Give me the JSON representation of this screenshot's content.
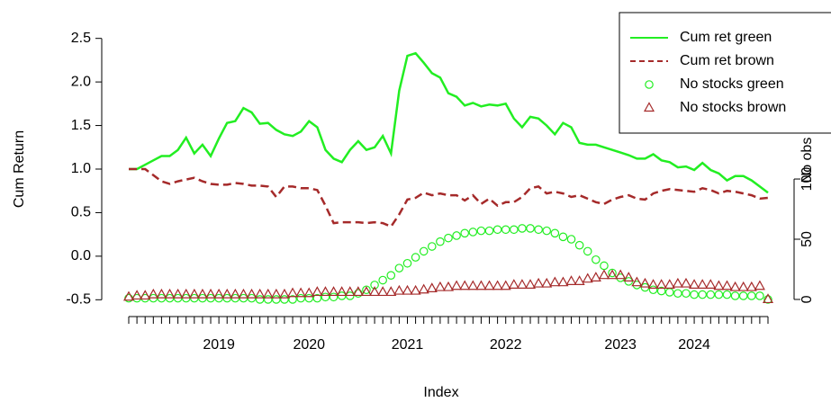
{
  "chart_data": {
    "type": "line",
    "x_label": "Index",
    "y_label": "Cum Return",
    "y2_label": "No obs",
    "categories": [
      null,
      null,
      null,
      null,
      null,
      null,
      null,
      null,
      null,
      null,
      null,
      "2019",
      null,
      null,
      null,
      null,
      null,
      null,
      null,
      null,
      null,
      null,
      "2020",
      null,
      null,
      null,
      null,
      null,
      null,
      null,
      null,
      null,
      null,
      null,
      "2021",
      null,
      null,
      null,
      null,
      null,
      null,
      null,
      null,
      null,
      null,
      null,
      "2022",
      null,
      null,
      null,
      null,
      null,
      null,
      null,
      null,
      null,
      null,
      null,
      null,
      null,
      "2023",
      null,
      null,
      null,
      null,
      null,
      null,
      null,
      null,
      "2024",
      null,
      null,
      null,
      null,
      null,
      null,
      null,
      null,
      null
    ],
    "ylim": [
      -0.6,
      2.6
    ],
    "yticks": [
      -0.5,
      {
        "value": 0,
        "label": "0.0"
      },
      0.5,
      {
        "value": 1,
        "label": "1.0"
      },
      1.5,
      {
        "value": 2,
        "label": "2.0"
      },
      2.5
    ],
    "y2lim": [
      -7.5,
      224
    ],
    "y2ticks": [
      0,
      50,
      100
    ],
    "legend": "top-right",
    "series": [
      {
        "name": "Cum ret green",
        "color": "#22ee22",
        "style": "solid",
        "values": [
          1.0,
          1.0,
          1.05,
          1.1,
          1.15,
          1.15,
          1.22,
          1.36,
          1.18,
          1.28,
          1.15,
          1.35,
          1.53,
          1.55,
          1.7,
          1.65,
          1.52,
          1.53,
          1.45,
          1.4,
          1.38,
          1.43,
          1.55,
          1.48,
          1.22,
          1.12,
          1.08,
          1.22,
          1.32,
          1.22,
          1.25,
          1.38,
          1.18,
          1.9,
          2.3,
          2.33,
          2.22,
          2.1,
          2.05,
          1.87,
          1.83,
          1.73,
          1.76,
          1.72,
          1.74,
          1.73,
          1.75,
          1.58,
          1.48,
          1.6,
          1.58,
          1.5,
          1.4,
          1.53,
          1.48,
          1.3,
          1.28,
          1.28,
          1.25,
          1.22,
          1.19,
          1.16,
          1.12,
          1.12,
          1.17,
          1.1,
          1.08,
          1.02,
          1.03,
          0.99,
          1.07,
          0.99,
          0.95,
          0.87,
          0.92,
          0.92,
          0.87,
          0.8,
          0.73
        ]
      },
      {
        "name": "Cum ret brown",
        "color": "#a52a2a",
        "style": "dashed",
        "values": [
          1.0,
          1.0,
          1.0,
          0.93,
          0.86,
          0.83,
          0.86,
          0.88,
          0.9,
          0.86,
          0.83,
          0.82,
          0.82,
          0.84,
          0.83,
          0.81,
          0.81,
          0.8,
          0.68,
          0.8,
          0.8,
          0.78,
          0.78,
          0.76,
          0.58,
          0.38,
          0.39,
          0.39,
          0.39,
          0.38,
          0.39,
          0.38,
          0.34,
          0.48,
          0.65,
          0.67,
          0.73,
          0.7,
          0.72,
          0.7,
          0.7,
          0.64,
          0.7,
          0.6,
          0.66,
          0.58,
          0.62,
          0.62,
          0.68,
          0.78,
          0.8,
          0.72,
          0.74,
          0.72,
          0.68,
          0.7,
          0.66,
          0.62,
          0.6,
          0.65,
          0.68,
          0.7,
          0.66,
          0.65,
          0.72,
          0.75,
          0.77,
          0.76,
          0.75,
          0.74,
          0.78,
          0.76,
          0.72,
          0.75,
          0.74,
          0.72,
          0.7,
          0.66,
          0.67
        ]
      },
      {
        "name": "No stocks green",
        "color": "#22ee22",
        "style": "circle",
        "axis": "y2",
        "values": [
          1,
          1,
          1,
          1,
          1,
          1,
          1,
          1,
          1,
          1,
          1,
          1,
          1,
          1,
          1,
          1,
          0,
          0,
          0,
          0,
          0,
          1,
          1,
          1,
          2,
          2,
          3,
          3,
          5,
          8,
          12,
          16,
          20,
          26,
          30,
          35,
          40,
          44,
          48,
          51,
          53,
          55,
          56,
          57,
          57,
          58,
          58,
          58,
          59,
          59,
          58,
          57,
          55,
          52,
          50,
          45,
          40,
          33,
          28,
          22,
          18,
          15,
          12,
          10,
          8,
          7,
          6,
          5,
          5,
          4,
          4,
          4,
          4,
          4,
          3,
          3,
          3,
          3,
          0
        ]
      },
      {
        "name": "No stocks brown",
        "color": "#a52a2a",
        "style": "triangle",
        "axis": "y2",
        "values": [
          2,
          3,
          3,
          4,
          4,
          4,
          4,
          4,
          4,
          4,
          4,
          4,
          4,
          4,
          4,
          4,
          4,
          4,
          4,
          4,
          5,
          5,
          5,
          6,
          6,
          6,
          6,
          6,
          6,
          6,
          6,
          6,
          6,
          7,
          7,
          7,
          8,
          9,
          10,
          10,
          11,
          11,
          11,
          11,
          11,
          11,
          11,
          12,
          12,
          12,
          13,
          13,
          14,
          14,
          15,
          15,
          17,
          18,
          20,
          20,
          20,
          18,
          14,
          13,
          12,
          12,
          12,
          13,
          13,
          12,
          12,
          12,
          11,
          11,
          10,
          10,
          10,
          11,
          0
        ]
      }
    ]
  }
}
